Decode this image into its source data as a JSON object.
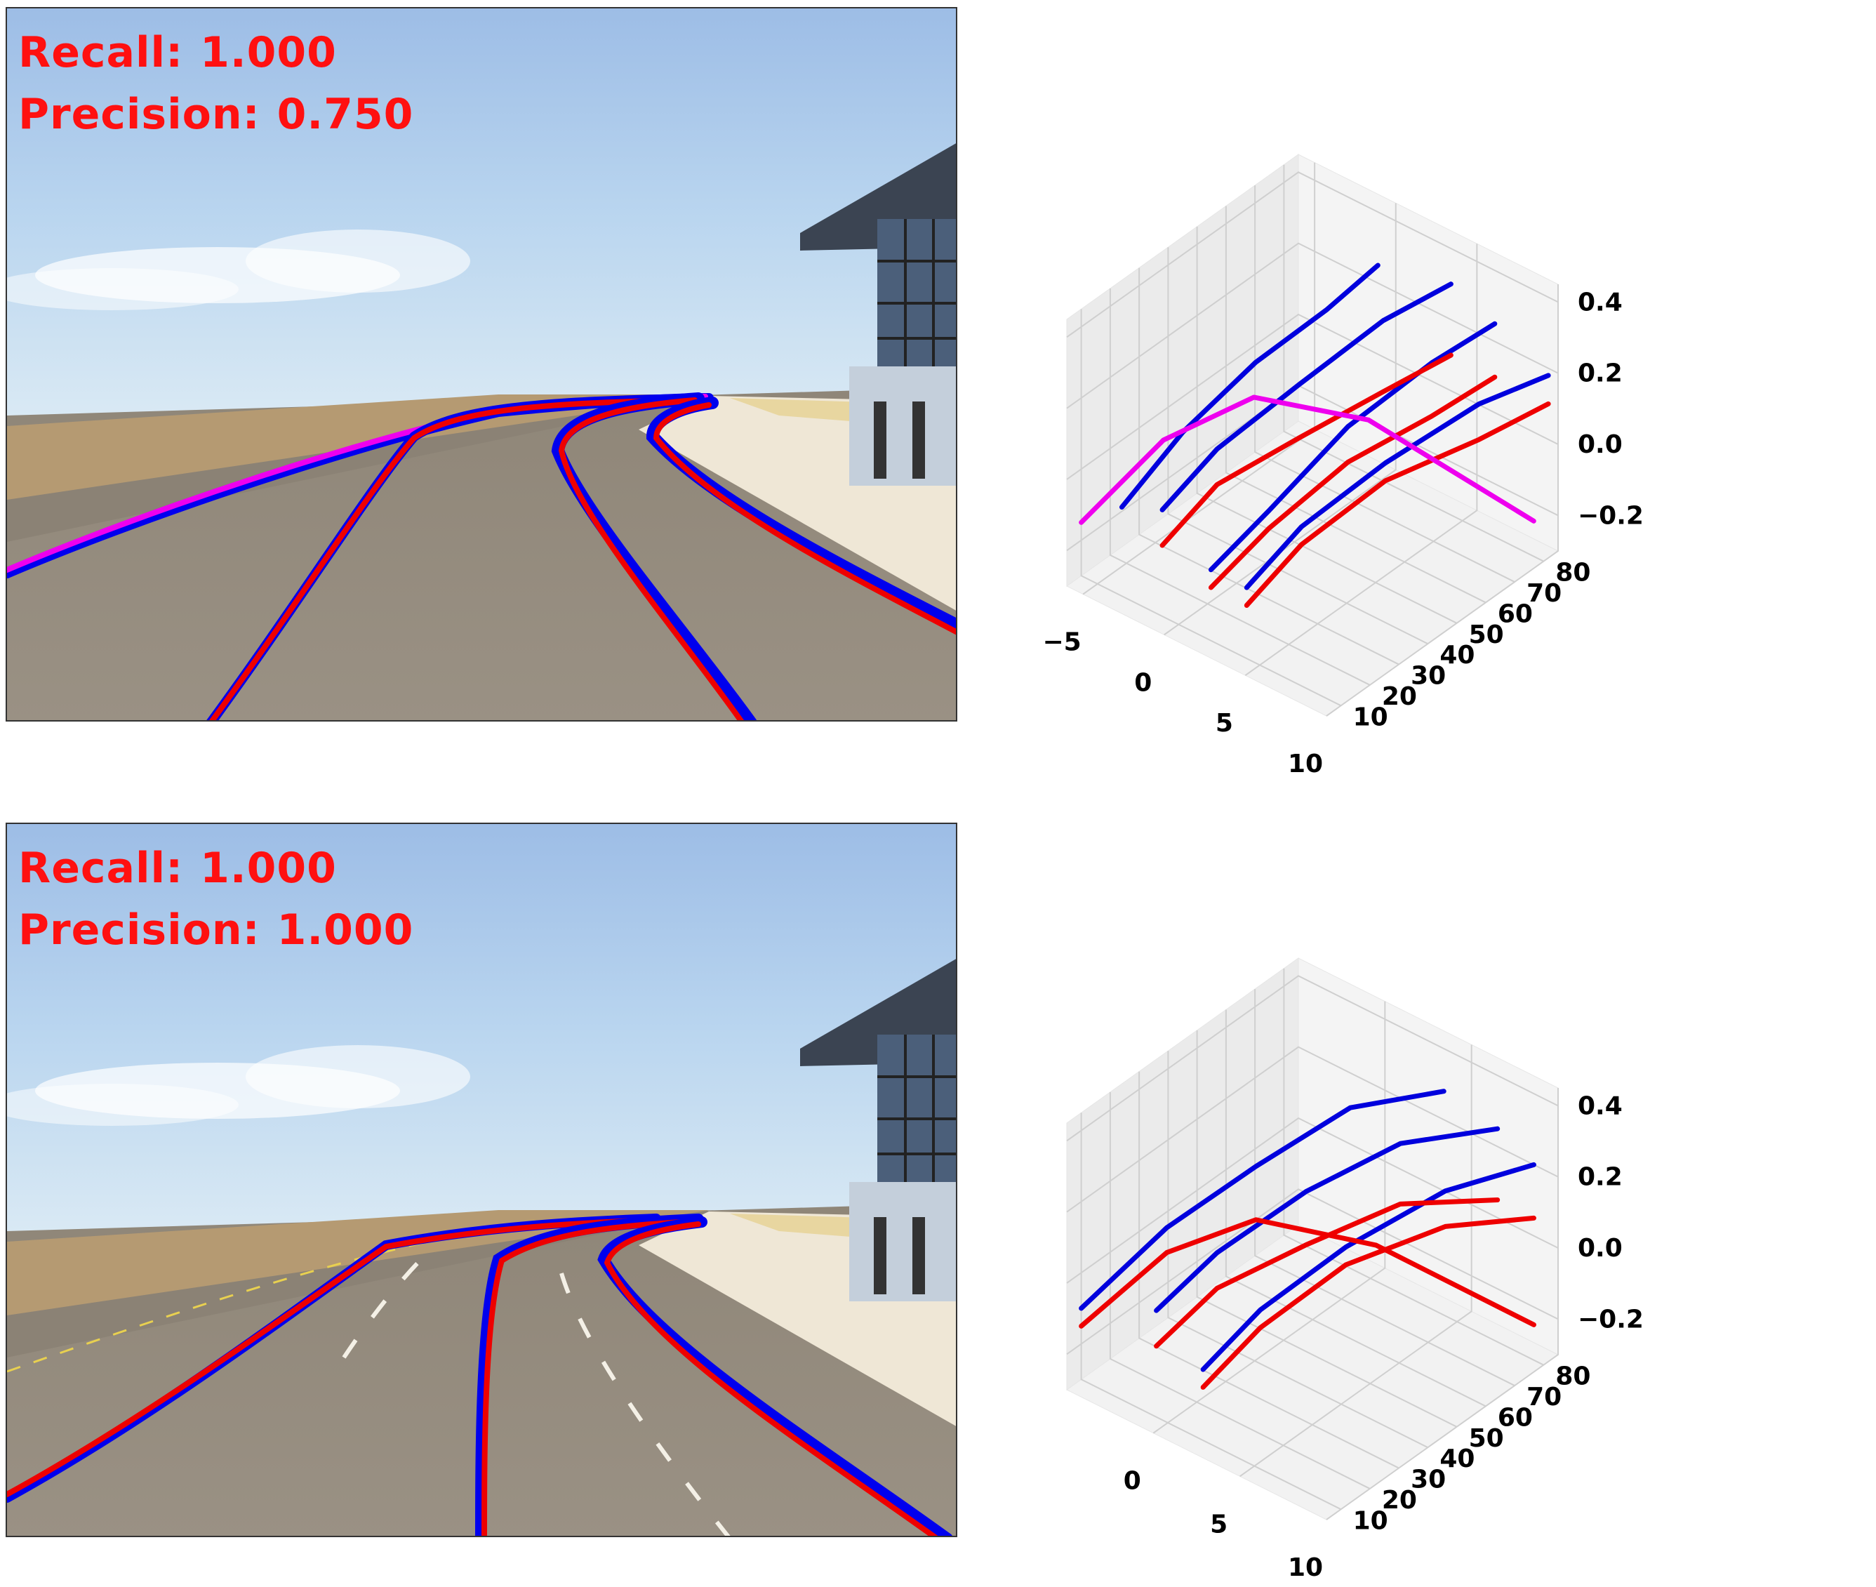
{
  "panels": [
    {
      "recall_label": "Recall:",
      "recall_value": "1.000",
      "precision_label": "Precision:",
      "precision_value": "0.750"
    },
    {
      "recall_label": "Recall:",
      "recall_value": "1.000",
      "precision_label": "Precision:",
      "precision_value": "1.000"
    }
  ],
  "colors": {
    "ground_truth": "#0000dd",
    "prediction": "#ee0000",
    "unmatched": "#ee00ee"
  },
  "chart_data": [
    {
      "type": "line3d",
      "x_ticks": [
        "−5",
        "0",
        "5",
        "10"
      ],
      "y_ticks": [
        "10",
        "20",
        "30",
        "40",
        "50",
        "60",
        "70",
        "80"
      ],
      "z_ticks": [
        "−0.2",
        "0.0",
        "0.2",
        "0.4"
      ],
      "xlim": [
        -6,
        10
      ],
      "ylim": [
        5,
        85
      ],
      "zlim": [
        -0.3,
        0.45
      ],
      "series": [
        {
          "color": "blue",
          "points": [
            [
              -3.5,
              10,
              -0.05
            ],
            [
              -3.3,
              30,
              0.05
            ],
            [
              -2.4,
              50,
              0.15
            ],
            [
              -1.6,
              70,
              0.2
            ],
            [
              -1.1,
              85,
              0.25
            ]
          ]
        },
        {
          "color": "blue",
          "points": [
            [
              -1.9,
              15,
              -0.05
            ],
            [
              -1.2,
              30,
              0.05
            ],
            [
              0.3,
              50,
              0.15
            ],
            [
              1.9,
              70,
              0.25
            ],
            [
              3.4,
              85,
              0.3
            ]
          ]
        },
        {
          "color": "blue",
          "points": [
            [
              1.1,
              15,
              -0.15
            ],
            [
              2.0,
              30,
              -0.05
            ],
            [
              3.3,
              50,
              0.1
            ],
            [
              4.9,
              70,
              0.2
            ],
            [
              6.1,
              85,
              0.25
            ]
          ]
        },
        {
          "color": "blue",
          "points": [
            [
              3.3,
              15,
              -0.15
            ],
            [
              4.0,
              30,
              -0.05
            ],
            [
              5.6,
              50,
              0.05
            ],
            [
              7.8,
              70,
              0.15
            ],
            [
              9.4,
              85,
              0.18
            ]
          ]
        },
        {
          "color": "red",
          "points": [
            [
              -1.9,
              15,
              -0.15
            ],
            [
              -1.2,
              30,
              -0.05
            ],
            [
              0.3,
              50,
              0.0
            ],
            [
              1.9,
              70,
              0.05
            ],
            [
              3.4,
              85,
              0.1
            ]
          ]
        },
        {
          "color": "red",
          "points": [
            [
              1.1,
              15,
              -0.2
            ],
            [
              2.0,
              30,
              -0.1
            ],
            [
              3.3,
              50,
              0.0
            ],
            [
              4.9,
              70,
              0.05
            ],
            [
              6.1,
              85,
              0.1
            ]
          ]
        },
        {
          "color": "red",
          "points": [
            [
              3.3,
              15,
              -0.2
            ],
            [
              4.0,
              30,
              -0.1
            ],
            [
              5.6,
              50,
              0.0
            ],
            [
              7.8,
              70,
              0.05
            ],
            [
              9.4,
              85,
              0.1
            ]
          ]
        },
        {
          "color": "magenta",
          "points": [
            [
              -6.0,
              10,
              -0.15
            ],
            [
              -4.5,
              30,
              0.0
            ],
            [
              -2.5,
              50,
              0.05
            ],
            [
              1.0,
              70,
              -0.05
            ],
            [
              8.5,
              85,
              -0.25
            ]
          ]
        }
      ]
    },
    {
      "type": "line3d",
      "x_ticks": [
        "0",
        "5",
        "10"
      ],
      "y_ticks": [
        "10",
        "20",
        "30",
        "40",
        "50",
        "60",
        "70",
        "80"
      ],
      "z_ticks": [
        "−0.2",
        "0.0",
        "0.2",
        "0.4"
      ],
      "xlim": [
        -5,
        10
      ],
      "ylim": [
        5,
        85
      ],
      "zlim": [
        -0.3,
        0.45
      ],
      "series": [
        {
          "color": "blue",
          "points": [
            [
              -5.0,
              10,
              -0.1
            ],
            [
              -3.4,
              30,
              0.05
            ],
            [
              -1.6,
              50,
              0.15
            ],
            [
              0.5,
              70,
              0.25
            ],
            [
              3.4,
              85,
              0.28
            ]
          ]
        },
        {
          "color": "blue",
          "points": [
            [
              -1.5,
              15,
              -0.05
            ],
            [
              -0.5,
              30,
              0.05
            ],
            [
              1.3,
              50,
              0.15
            ],
            [
              3.4,
              70,
              0.22
            ],
            [
              6.5,
              85,
              0.25
            ]
          ]
        },
        {
          "color": "blue",
          "points": [
            [
              1.2,
              15,
              -0.15
            ],
            [
              2.0,
              30,
              -0.05
            ],
            [
              3.6,
              50,
              0.05
            ],
            [
              6.0,
              70,
              0.15
            ],
            [
              8.6,
              85,
              0.2
            ]
          ]
        },
        {
          "color": "red",
          "points": [
            [
              -5.0,
              10,
              -0.15
            ],
            [
              -3.4,
              30,
              -0.02
            ],
            [
              -1.6,
              50,
              0.0
            ],
            [
              2.0,
              70,
              -0.1
            ],
            [
              8.6,
              85,
              -0.25
            ]
          ]
        },
        {
          "color": "red",
          "points": [
            [
              -1.5,
              15,
              -0.15
            ],
            [
              -0.5,
              30,
              -0.05
            ],
            [
              1.3,
              50,
              0.0
            ],
            [
              3.4,
              70,
              0.05
            ],
            [
              6.5,
              85,
              0.05
            ]
          ]
        },
        {
          "color": "red",
          "points": [
            [
              1.2,
              15,
              -0.2
            ],
            [
              2.0,
              30,
              -0.1
            ],
            [
              3.6,
              50,
              0.0
            ],
            [
              6.0,
              70,
              0.05
            ],
            [
              8.6,
              85,
              0.05
            ]
          ]
        }
      ]
    }
  ]
}
